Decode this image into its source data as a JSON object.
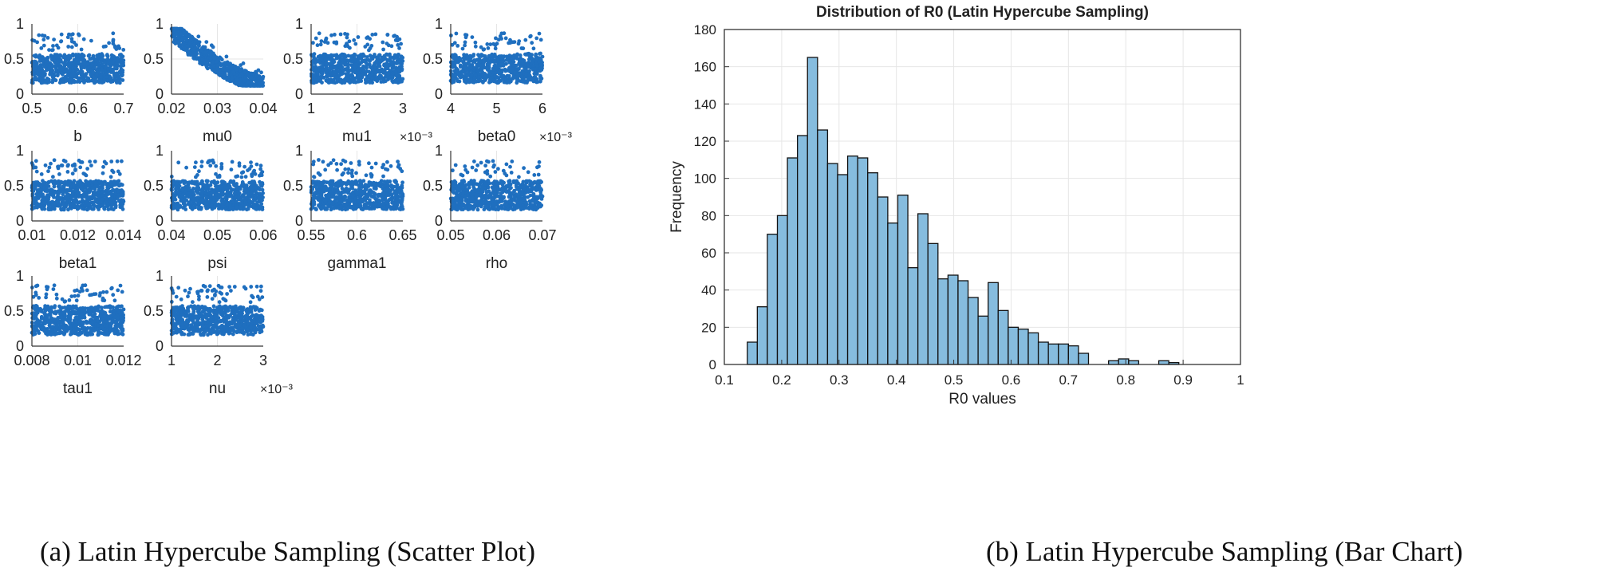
{
  "captions": {
    "left": "(a) Latin Hypercube Sampling (Scatter Plot)",
    "right": "(b) Latin Hypercube Sampling (Bar Chart)"
  },
  "colors": {
    "scatter": "#1f6fbf",
    "bar_fill": "#86bcde",
    "bar_edge": "#111111",
    "grid": "#e6e6e6"
  },
  "chart_data": [
    {
      "type": "scatter",
      "title": "Latin Hypercube Sampling (Scatter Plot)",
      "ylim": [
        0,
        1
      ],
      "yticks": [
        "0",
        "0.5",
        "1"
      ],
      "panels": [
        {
          "param": "b",
          "xlim": [
            0.5,
            0.7
          ],
          "xticks": [
            "0.5",
            "0.6",
            "0.7"
          ],
          "scale_label": "",
          "trend": [
            0.28,
            0.4
          ]
        },
        {
          "param": "mu0",
          "xlim": [
            0.02,
            0.04
          ],
          "xticks": [
            "0.02",
            "0.03",
            "0.04"
          ],
          "scale_label": "",
          "trend": [
            0.72,
            0.22
          ]
        },
        {
          "param": "mu1",
          "xlim": [
            1,
            3
          ],
          "xticks": [
            "1",
            "2",
            "3"
          ],
          "scale_label": "×10⁻³",
          "trend": [
            0.36,
            0.34
          ]
        },
        {
          "param": "beta0",
          "xlim": [
            4,
            6
          ],
          "xticks": [
            "4",
            "5",
            "6"
          ],
          "scale_label": "×10⁻³",
          "trend": [
            0.3,
            0.4
          ]
        },
        {
          "param": "beta1",
          "xlim": [
            0.01,
            0.014
          ],
          "xticks": [
            "0.01",
            "0.012",
            "0.014"
          ],
          "scale_label": "",
          "trend": [
            0.36,
            0.36
          ]
        },
        {
          "param": "psi",
          "xlim": [
            0.04,
            0.06
          ],
          "xticks": [
            "0.04",
            "0.05",
            "0.06"
          ],
          "scale_label": "",
          "trend": [
            0.35,
            0.37
          ]
        },
        {
          "param": "gamma1",
          "xlim": [
            0.55,
            0.65
          ],
          "xticks": [
            "0.55",
            "0.6",
            "0.65"
          ],
          "scale_label": "",
          "trend": [
            0.34,
            0.38
          ]
        },
        {
          "param": "rho",
          "xlim": [
            0.05,
            0.07
          ],
          "xticks": [
            "0.05",
            "0.06",
            "0.07"
          ],
          "scale_label": "",
          "trend": [
            0.4,
            0.34
          ]
        },
        {
          "param": "tau1",
          "xlim": [
            0.008,
            0.012
          ],
          "xticks": [
            "0.008",
            "0.01",
            "0.012"
          ],
          "scale_label": "",
          "trend": [
            0.38,
            0.35
          ]
        },
        {
          "param": "nu",
          "xlim": [
            1,
            3
          ],
          "xticks": [
            "1",
            "2",
            "3"
          ],
          "scale_label": "×10⁻³",
          "trend": [
            0.37,
            0.35
          ]
        }
      ]
    },
    {
      "type": "bar",
      "title": "Distribution of R0 (Latin Hypercube Sampling)",
      "xlabel": "R0 values",
      "ylabel": "Frequency",
      "xlim": [
        0.1,
        1.0
      ],
      "ylim": [
        0,
        180
      ],
      "xticks": [
        "0.1",
        "0.2",
        "0.3",
        "0.4",
        "0.5",
        "0.6",
        "0.7",
        "0.8",
        "0.9",
        "1"
      ],
      "yticks": [
        "0",
        "20",
        "40",
        "60",
        "80",
        "100",
        "120",
        "140",
        "160",
        "180"
      ],
      "grid": true,
      "bin_start": 0.14,
      "bin_width": 0.0175,
      "values": [
        12,
        31,
        70,
        80,
        111,
        123,
        165,
        126,
        108,
        102,
        112,
        111,
        103,
        90,
        76,
        91,
        52,
        81,
        65,
        46,
        48,
        45,
        36,
        26,
        44,
        29,
        20,
        19,
        17,
        12,
        11,
        11,
        10,
        6,
        0,
        0,
        2,
        3,
        2,
        0,
        0,
        2,
        1,
        0,
        0,
        0,
        0,
        0
      ]
    }
  ]
}
